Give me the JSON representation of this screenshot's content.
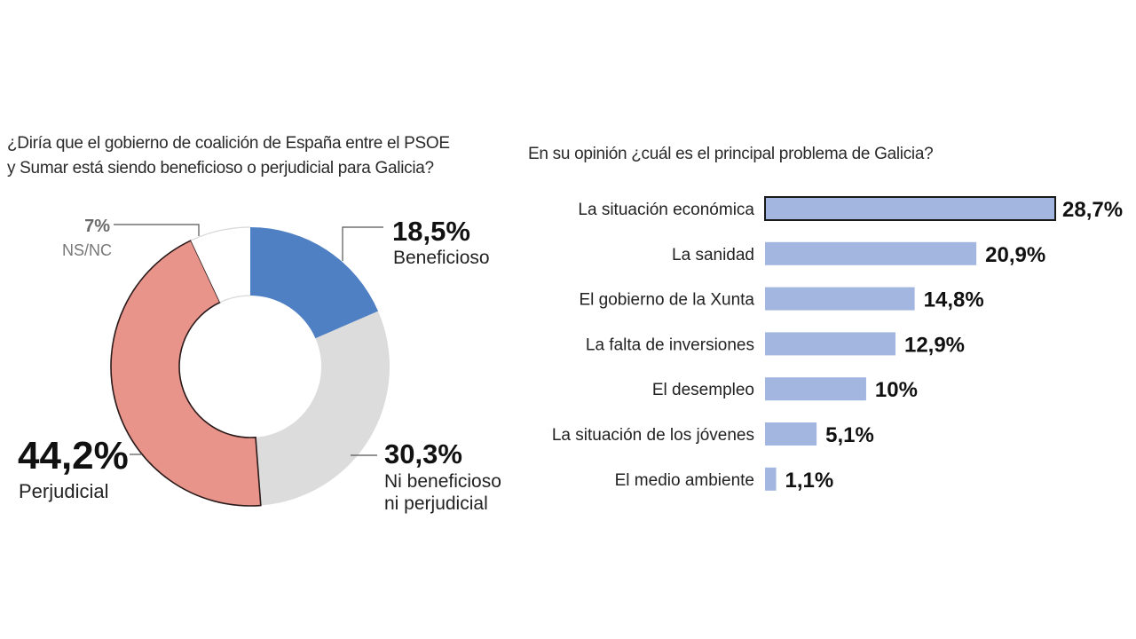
{
  "chart_data": [
    {
      "type": "pie",
      "title": "¿Diría que el gobierno de coalición de España entre el PSOE y Sumar está siendo beneficioso o perjudicial para Galicia?",
      "title_lines": [
        "¿Diría que el gobierno de coalición de España entre el PSOE",
        "y Sumar está siendo beneficioso o perjudicial para Galicia?"
      ],
      "donut": true,
      "slices": [
        {
          "key": "beneficioso",
          "label_lines": [
            "Beneficioso"
          ],
          "value": 18.5,
          "value_label": "18,5%",
          "color": "#4e80c3"
        },
        {
          "key": "ni",
          "label_lines": [
            "Ni beneficioso",
            "ni perjudicial"
          ],
          "value": 30.3,
          "value_label": "30,3%",
          "color": "#dcdcdc"
        },
        {
          "key": "perjudicial",
          "label_lines": [
            "Perjudicial"
          ],
          "value": 44.2,
          "value_label": "44,2%",
          "color": "#e8948a"
        },
        {
          "key": "nsnc",
          "label_lines": [
            "NS/NC"
          ],
          "value": 7,
          "value_label": "7%",
          "color": "#ffffff"
        }
      ]
    },
    {
      "type": "bar",
      "orientation": "horizontal",
      "title": "En su opinión ¿cuál es el principal problema de Galicia?",
      "categories": [
        "La situación económica",
        "La sanidad",
        "El gobierno de la Xunta",
        "La falta de inversiones",
        "El desempleo",
        "La situación de los jóvenes",
        "El medio ambiente"
      ],
      "values": [
        28.7,
        20.9,
        14.8,
        12.9,
        10,
        5.1,
        1.1
      ],
      "value_labels": [
        "28,7%",
        "20,9%",
        "14,8%",
        "12,9%",
        "10%",
        "5,1%",
        "1,1%"
      ],
      "bar_color": "#a3b6e0",
      "highlight_index": 0,
      "xlim": [
        0,
        28.7
      ]
    }
  ]
}
